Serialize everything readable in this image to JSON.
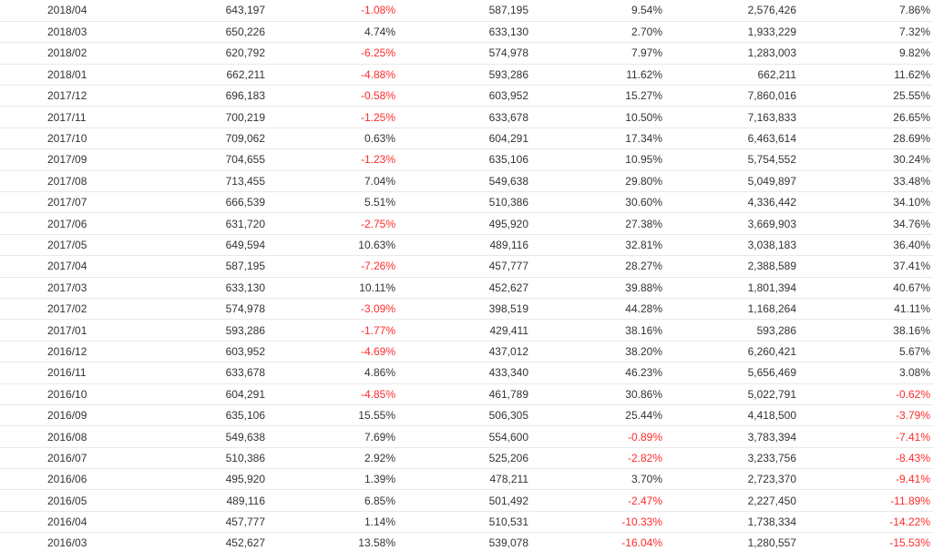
{
  "table": {
    "rows": [
      [
        "2018/04",
        "643,197",
        "-1.08%",
        "587,195",
        "9.54%",
        "2,576,426",
        "7.86%"
      ],
      [
        "2018/03",
        "650,226",
        "4.74%",
        "633,130",
        "2.70%",
        "1,933,229",
        "7.32%"
      ],
      [
        "2018/02",
        "620,792",
        "-6.25%",
        "574,978",
        "7.97%",
        "1,283,003",
        "9.82%"
      ],
      [
        "2018/01",
        "662,211",
        "-4.88%",
        "593,286",
        "11.62%",
        "662,211",
        "11.62%"
      ],
      [
        "2017/12",
        "696,183",
        "-0.58%",
        "603,952",
        "15.27%",
        "7,860,016",
        "25.55%"
      ],
      [
        "2017/11",
        "700,219",
        "-1.25%",
        "633,678",
        "10.50%",
        "7,163,833",
        "26.65%"
      ],
      [
        "2017/10",
        "709,062",
        "0.63%",
        "604,291",
        "17.34%",
        "6,463,614",
        "28.69%"
      ],
      [
        "2017/09",
        "704,655",
        "-1.23%",
        "635,106",
        "10.95%",
        "5,754,552",
        "30.24%"
      ],
      [
        "2017/08",
        "713,455",
        "7.04%",
        "549,638",
        "29.80%",
        "5,049,897",
        "33.48%"
      ],
      [
        "2017/07",
        "666,539",
        "5.51%",
        "510,386",
        "30.60%",
        "4,336,442",
        "34.10%"
      ],
      [
        "2017/06",
        "631,720",
        "-2.75%",
        "495,920",
        "27.38%",
        "3,669,903",
        "34.76%"
      ],
      [
        "2017/05",
        "649,594",
        "10.63%",
        "489,116",
        "32.81%",
        "3,038,183",
        "36.40%"
      ],
      [
        "2017/04",
        "587,195",
        "-7.26%",
        "457,777",
        "28.27%",
        "2,388,589",
        "37.41%"
      ],
      [
        "2017/03",
        "633,130",
        "10.11%",
        "452,627",
        "39.88%",
        "1,801,394",
        "40.67%"
      ],
      [
        "2017/02",
        "574,978",
        "-3.09%",
        "398,519",
        "44.28%",
        "1,168,264",
        "41.11%"
      ],
      [
        "2017/01",
        "593,286",
        "-1.77%",
        "429,411",
        "38.16%",
        "593,286",
        "38.16%"
      ],
      [
        "2016/12",
        "603,952",
        "-4.69%",
        "437,012",
        "38.20%",
        "6,260,421",
        "5.67%"
      ],
      [
        "2016/11",
        "633,678",
        "4.86%",
        "433,340",
        "46.23%",
        "5,656,469",
        "3.08%"
      ],
      [
        "2016/10",
        "604,291",
        "-4.85%",
        "461,789",
        "30.86%",
        "5,022,791",
        "-0.62%"
      ],
      [
        "2016/09",
        "635,106",
        "15.55%",
        "506,305",
        "25.44%",
        "4,418,500",
        "-3.79%"
      ],
      [
        "2016/08",
        "549,638",
        "7.69%",
        "554,600",
        "-0.89%",
        "3,783,394",
        "-7.41%"
      ],
      [
        "2016/07",
        "510,386",
        "2.92%",
        "525,206",
        "-2.82%",
        "3,233,756",
        "-8.43%"
      ],
      [
        "2016/06",
        "495,920",
        "1.39%",
        "478,211",
        "3.70%",
        "2,723,370",
        "-9.41%"
      ],
      [
        "2016/05",
        "489,116",
        "6.85%",
        "501,492",
        "-2.47%",
        "2,227,450",
        "-11.89%"
      ],
      [
        "2016/04",
        "457,777",
        "1.14%",
        "510,531",
        "-10.33%",
        "1,738,334",
        "-14.22%"
      ],
      [
        "2016/03",
        "452,627",
        "13.58%",
        "539,078",
        "-16.04%",
        "1,280,557",
        "-15.53%"
      ]
    ],
    "colors": {
      "negative": "#ff2b2b",
      "text": "#333333",
      "border": "#e9e9e9"
    }
  }
}
